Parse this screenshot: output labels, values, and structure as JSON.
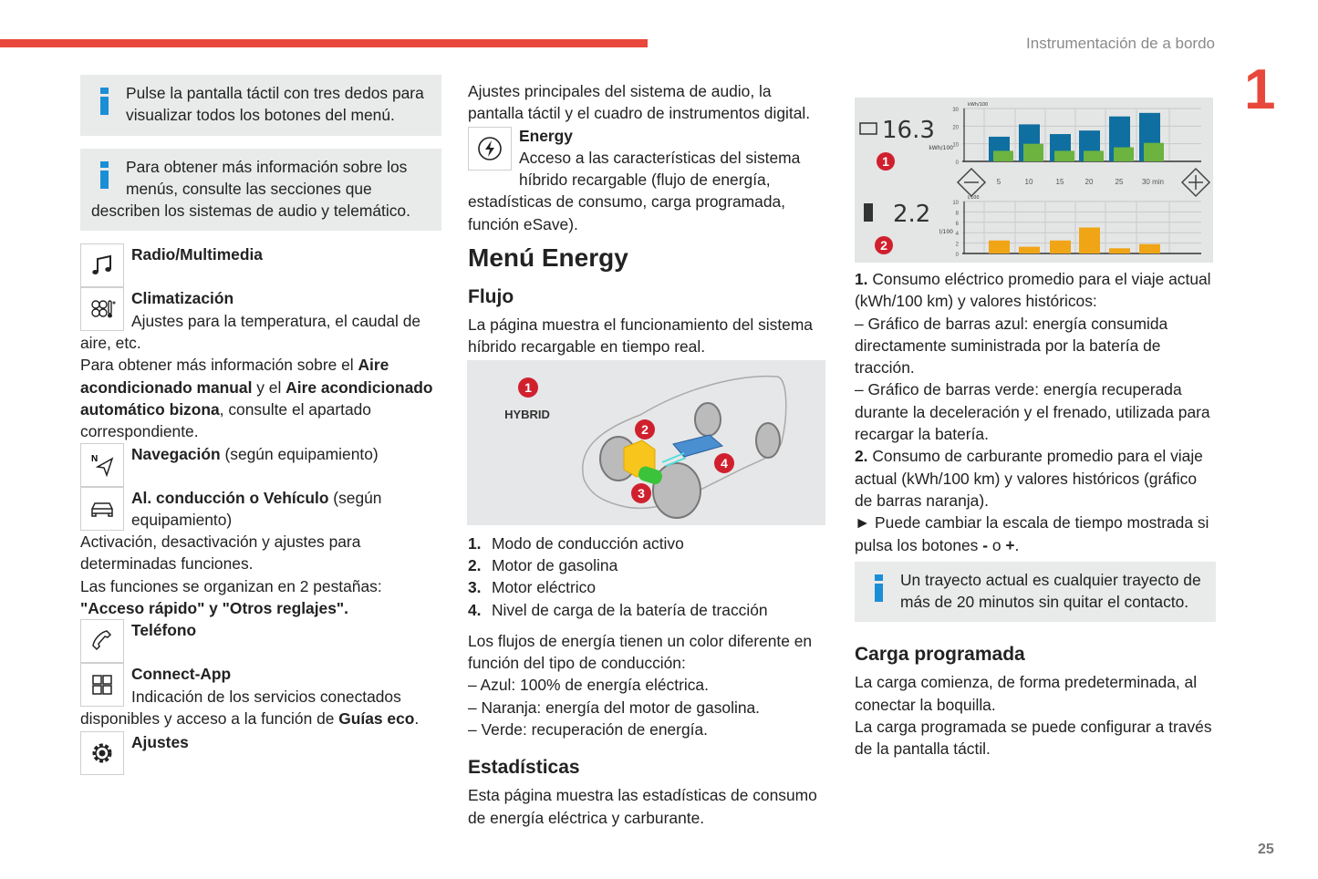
{
  "header": {
    "section_title": "Instrumentación de a bordo",
    "chapter": "1",
    "page_number": "25",
    "accent": "#e8483b"
  },
  "left": {
    "info1": "Pulse la pantalla táctil con tres dedos para visualizar todos los botones del menú.",
    "info2": "Para obtener más información sobre los menús, consulte las secciones que describen los sistemas de audio y telemático.",
    "radio": {
      "title": "Radio/Multimedia",
      "icon": "music-note-icon"
    },
    "clima": {
      "title": "Climatización",
      "text": "Ajustes para la temperatura, el caudal de aire, etc.",
      "icon": "fan-temperature-icon",
      "p1": "Para obtener más información sobre el ",
      "b1": "Aire acondicionado manual",
      "p2": " y el ",
      "b2": "Aire acondicionado automático bizona",
      "p3": ", consulte el apartado correspondiente."
    },
    "nav": {
      "title": "Navegación",
      "suffix": " (según equipamiento)",
      "icon": "navigation-icon"
    },
    "vehiculo": {
      "title": "Al. conducción o Vehículo",
      "suffix": " (según equipamiento)",
      "icon": "car-icon",
      "text": "Activación, desactivación y ajustes para determinadas funciones.",
      "p1": "Las funciones se organizan en 2 pestañas: ",
      "q1": "\"",
      "b1": "Acceso rápido",
      "q2": "\" y \"",
      "b2": "Otros reglajes",
      "q3": "\"."
    },
    "telefono": {
      "title": "Teléfono",
      "icon": "phone-icon"
    },
    "connect": {
      "title": "Connect-App",
      "icon": "apps-grid-icon",
      "p1": "Indicación de los servicios conectados disponibles y acceso a la función de ",
      "b1": "Guías eco",
      "p2": "."
    },
    "ajustes": {
      "title": "Ajustes",
      "icon": "gear-icon"
    }
  },
  "middle": {
    "intro": "Ajustes principales del sistema de audio, la pantalla táctil y el cuadro de instrumentos digital.",
    "energy": {
      "title": "Energy",
      "text": "Acceso a las características del sistema híbrido recargable (flujo de energía, estadísticas de consumo, carga programada, función eSave).",
      "icon": "energy-bolt-icon"
    },
    "heading": "Menú Energy",
    "flujo": {
      "title": "Flujo",
      "text": "La página muestra el funcionamiento del sistema híbrido recargable en tiempo real.",
      "figure": {
        "label": "HYBRID",
        "badges": [
          "1",
          "2",
          "3",
          "4"
        ]
      },
      "list": [
        {
          "n": "1.",
          "t": "Modo de conducción activo"
        },
        {
          "n": "2.",
          "t": "Motor de gasolina"
        },
        {
          "n": "3.",
          "t": "Motor eléctrico"
        },
        {
          "n": "4.",
          "t": "Nivel de carga de la batería de tracción"
        }
      ],
      "colors_intro": "Los flujos de energía tienen un color diferente en función del tipo de conducción:",
      "colors": [
        "–  Azul: 100% de energía eléctrica.",
        "–  Naranja: energía del motor de gasolina.",
        "–  Verde: recuperación de energía."
      ]
    },
    "estadisticas": {
      "title": "Estadísticas",
      "text": "Esta página muestra las estadísticas de consumo de energía eléctrica y carburante."
    }
  },
  "right": {
    "stats_figure": {
      "electric": {
        "value": "16.3",
        "unit": "kWh/100",
        "badge": "1",
        "axis_unit": "kWh/100",
        "yticks": [
          "0",
          "10",
          "20",
          "30"
        ],
        "ymax": 30,
        "blue": [
          14,
          21,
          15.5,
          17.5,
          25.5,
          27.5
        ],
        "green": [
          6,
          10,
          6,
          6,
          8,
          10.5
        ],
        "blue_color": "#0f6fa0",
        "green_color": "#6cb33f"
      },
      "fuel": {
        "value": "2.2",
        "unit": "l/100",
        "badge": "2",
        "axis_unit": "l/100",
        "yticks": [
          "0",
          "2",
          "4",
          "6",
          "8",
          "10"
        ],
        "ymax": 10,
        "orange": [
          2.5,
          1.3,
          2.5,
          5,
          1,
          1.8
        ],
        "orange_color": "#f0a516"
      },
      "xticks": [
        "5",
        "10",
        "15",
        "20",
        "25",
        "30 min"
      ]
    },
    "p1_n": "1.",
    "p1": " Consumo eléctrico promedio para el viaje actual (kWh/100 km) y valores históricos:",
    "d1": "–  Gráfico de barras azul: energía consumida directamente suministrada por la batería de tracción.",
    "d2": "–  Gráfico de barras verde: energía recuperada durante la deceleración y el frenado, utilizada para recargar la batería.",
    "p2_n": "2.",
    "p2": " Consumo de carburante promedio para el viaje actual (kWh/100 km) y valores históricos (gráfico de barras naranja).",
    "p3": "►  Puede cambiar la escala de tiempo mostrada si pulsa los botones ",
    "p3_minus": "-",
    "p3_mid": " o ",
    "p3_plus": "+",
    "p3_end": ".",
    "info": "Un trayecto actual es cualquier trayecto de más de 20 minutos sin quitar el contacto.",
    "carga": {
      "title": "Carga programada",
      "t1": "La carga comienza, de forma predeterminada, al conectar la boquilla.",
      "t2": "La carga programada se puede configurar a través de la pantalla táctil."
    }
  }
}
